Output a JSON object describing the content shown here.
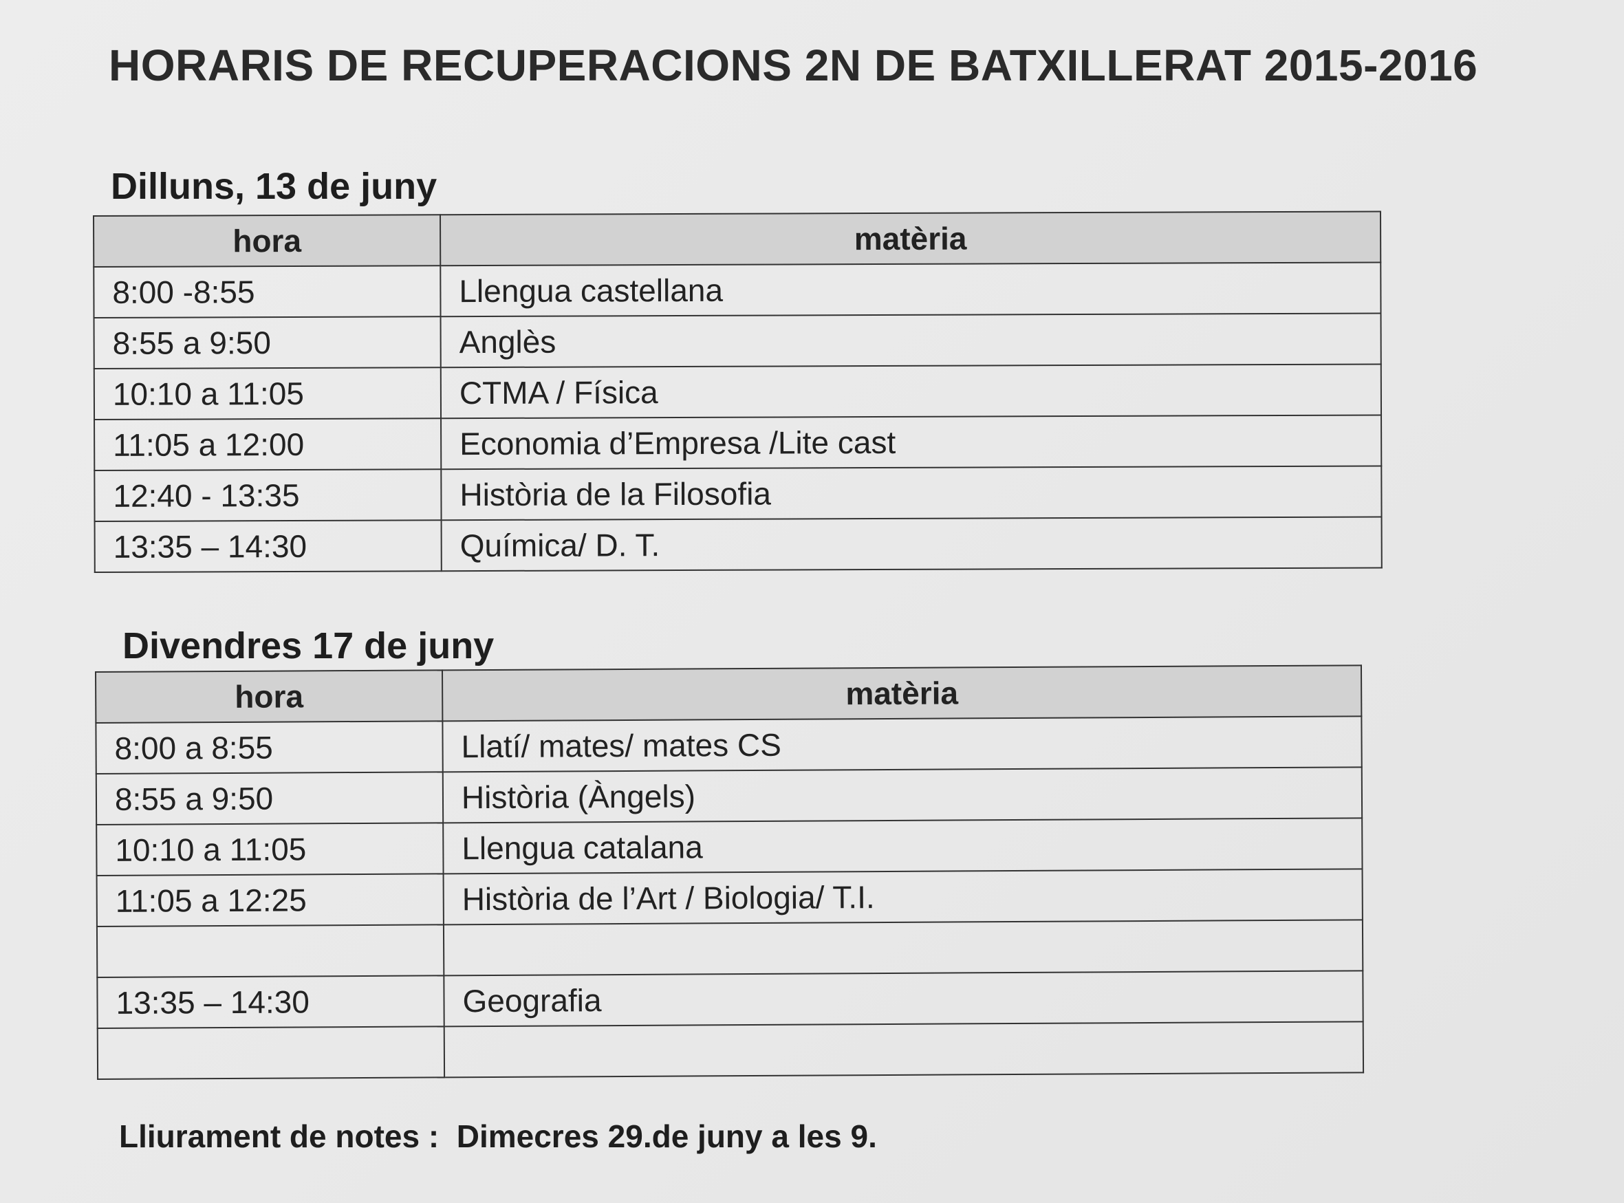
{
  "title": "HORARIS DE RECUPERACIONS 2N DE BATXILLERAT 2015-2016",
  "days": [
    {
      "heading": "Dilluns, 13 de juny",
      "headers": [
        "hora",
        "matèria"
      ],
      "rows": [
        [
          "8:00 -8:55",
          "Llengua castellana"
        ],
        [
          "8:55 a 9:50",
          "Anglès"
        ],
        [
          "10:10 a 11:05",
          "CTMA / Física"
        ],
        [
          "11:05 a 12:00",
          "Economia d’Empresa /Lite cast"
        ],
        [
          "12:40 - 13:35",
          "Història de la Filosofia"
        ],
        [
          "13:35 – 14:30",
          "Química/ D. T."
        ]
      ]
    },
    {
      "heading": "Divendres 17 de juny",
      "headers": [
        "hora",
        "matèria"
      ],
      "rows": [
        [
          "8:00 a 8:55",
          "Llatí/ mates/ mates CS"
        ],
        [
          "8:55 a 9:50",
          "Història (Àngels)"
        ],
        [
          "10:10 a 11:05",
          "Llengua catalana"
        ],
        [
          "11:05 a 12:25",
          "Història de l’Art / Biologia/ T.I."
        ],
        [
          "",
          ""
        ],
        [
          "13:35 – 14:30",
          "Geografia"
        ],
        [
          "",
          ""
        ]
      ]
    }
  ],
  "footer": {
    "label": "Lliurament de notes :",
    "value": "Dimecres 29.de juny a les 9."
  }
}
